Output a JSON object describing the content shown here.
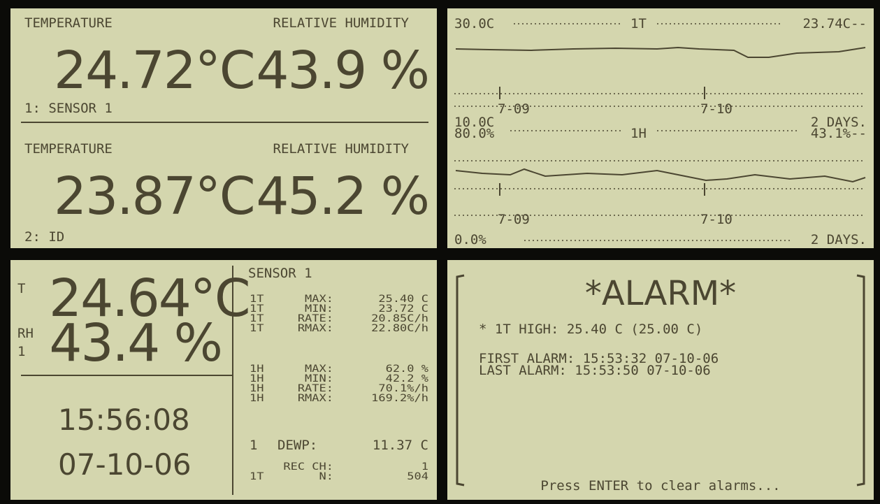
{
  "display_1": {
    "readings": [
      {
        "temperature_label": "TEMPERATURE",
        "humidity_label": "RELATIVE HUMIDITY",
        "temperature": "24.72°C",
        "humidity": "43.9 %",
        "sensor": "1: SENSOR 1"
      },
      {
        "temperature_label": "TEMPERATURE",
        "humidity_label": "RELATIVE HUMIDITY",
        "temperature": "23.87°C",
        "humidity": "45.2 %",
        "sensor": "2: ID"
      }
    ]
  },
  "display_2": {
    "graphs": [
      {
        "top": "30.0C",
        "channel": "1T",
        "current": "23.74C--",
        "date_1": "7-09",
        "date_2": "7-10",
        "bottom": "10.0C",
        "span": "2 DAYS."
      },
      {
        "top": "80.0%",
        "channel": "1H",
        "current": "43.1%--",
        "date_1": "7-09",
        "date_2": "7-10",
        "bottom": "0.0%",
        "span": "2 DAYS."
      }
    ]
  },
  "display_3": {
    "t_label": "T",
    "temperature": "24.64°C",
    "rh_label": "RH",
    "humidity": "43.4 %",
    "channel": "1",
    "time": "15:56:08",
    "date": "07-10-06",
    "sensor": "SENSOR 1",
    "stats": [
      [
        [
          "1T",
          "MAX:",
          "25.40 C"
        ],
        [
          "1T",
          "MIN:",
          "23.72 C"
        ],
        [
          "1T",
          "RATE:",
          "20.85C/h"
        ],
        [
          "1T",
          "RMAX:",
          "22.80C/h"
        ]
      ],
      [
        [
          "1H",
          "MAX:",
          "62.0 %"
        ],
        [
          "1H",
          "MIN:",
          "42.2 %"
        ],
        [
          "1H",
          "RATE:",
          "70.1%/h"
        ],
        [
          "1H",
          "RMAX:",
          "169.2%/h"
        ]
      ],
      [
        [
          "1",
          "DEWP:",
          "11.37 C"
        ]
      ],
      [
        [
          "",
          "REC CH:",
          "1"
        ],
        [
          "1T",
          "N:",
          "504"
        ]
      ]
    ]
  },
  "display_4": {
    "title": "*ALARM*",
    "alarm": "* 1T HIGH: 25.40 C (25.00 C)",
    "first_alarm": "FIRST ALARM: 15:53:32 07-10-06",
    "last_alarm": "LAST ALARM: 15:53:50 07-10-06",
    "prompt": "Press ENTER to clear alarms..."
  }
}
